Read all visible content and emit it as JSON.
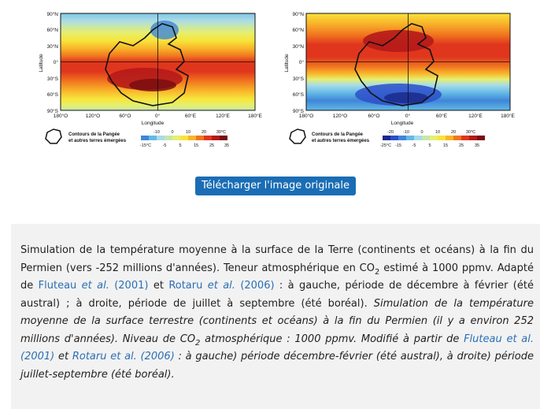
{
  "figures": {
    "y_axis_title": "Latitude",
    "x_axis_title": "Longitude",
    "lat_labels": [
      "90°N",
      "60°N",
      "30°N",
      "0°",
      "30°S",
      "60°S",
      "90°S"
    ],
    "lon_labels": [
      "180°O",
      "120°O",
      "60°O",
      "0°",
      "60°E",
      "120°E",
      "180°E"
    ],
    "legend_line1": "Contours de la Pangée",
    "legend_line2": "et autres terres émergées",
    "left_scale": {
      "top": [
        "-10",
        "0",
        "10",
        "20",
        "30°C"
      ],
      "bottom": [
        "-15°C",
        "-5",
        "5",
        "15",
        "25",
        "35"
      ]
    },
    "right_scale": {
      "top": [
        "-20",
        "-10",
        "0",
        "10",
        "20",
        "30°C"
      ],
      "bottom": [
        "-25°C",
        "-15",
        "-5",
        "5",
        "15",
        "25",
        "35"
      ]
    },
    "colors": [
      "#1b2a8a",
      "#2d4fc9",
      "#3f86d8",
      "#63b9e6",
      "#a8dbe8",
      "#c6e6b0",
      "#e6ef6e",
      "#f7e43a",
      "#f8b62b",
      "#f1761f",
      "#e0361d",
      "#b5191a",
      "#7a0d10"
    ]
  },
  "download_button": "Télécharger l'image originale",
  "caption": {
    "p1_before_sub": "Simulation de la température moyenne à la surface de la Terre (continents et océans) à la fin du Permien (vers -252 millions d'années). Teneur atmosphérique en CO",
    "p1_sub": "2",
    "p1_after_sub": " estimé à 1000 ppmv. Adapté de ",
    "link_fluteau": "Fluteau ",
    "link_fluteau_etal": "et al.",
    "link_fluteau_year": " (2001)",
    "and1": " et ",
    "link_rotaru": "Rotaru ",
    "link_rotaru_etal": "et al.",
    "link_rotaru_year": " (2006)",
    "p1_tail": " : à gauche, période de décembre à février (été austral) ; à droite, période de juillet à septembre (été boréal). ",
    "it1": "Simulation de la température moyenne de la surface terrestre (continents et océans) à la fin du Permien (il y a environ 252 millions d'années). Niveau de CO",
    "it_sub": "2",
    "it2": " atmosphérique : 1000 ppmv. Modifié à partir de ",
    "it_link1": "Fluteau et al. (2001)",
    "it_and": " et ",
    "it_link2": "Rotaru et al. (2006)",
    "it_tail": " : à gauche) période décembre-février (été austral), à droite) période juillet-septembre (été boréal)."
  }
}
